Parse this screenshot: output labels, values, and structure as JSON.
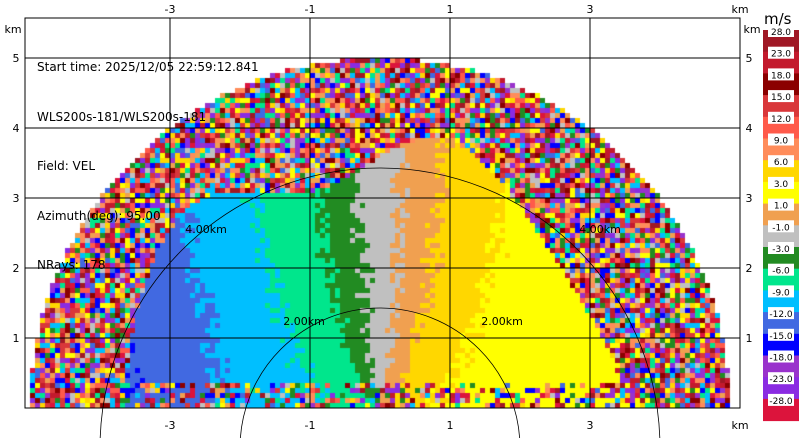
{
  "info": {
    "start_time": "Start time: 2025/12/05 22:59:12.841",
    "site": "WLS200s-181/WLS200s-181",
    "field": "Field: VEL",
    "azimuth": "Azimuth(deg): 95.00",
    "nrays": "NRays: 178"
  },
  "colorbar": {
    "unit": "m/s",
    "labels": [
      "28.0",
      "23.0",
      "18.0",
      "15.0",
      "12.0",
      "9.0",
      "6.0",
      "3.0",
      "1.0",
      "-1.0",
      "-3.0",
      "-6.0",
      "-9.0",
      "-12.0",
      "-15.0",
      "-18.0",
      "-23.0",
      "-28.0"
    ],
    "colors": [
      "#a01825",
      "#c31a2d",
      "#8b0000",
      "#d9373a",
      "#ff5a4a",
      "#ff8c5a",
      "#ffd700",
      "#ffff00",
      "#f0a050",
      "#c0c0c0",
      "#228b22",
      "#00e68c",
      "#00bfff",
      "#4169e1",
      "#0000ff",
      "#9932cc",
      "#8a2be2",
      "#dc143c"
    ]
  },
  "chart_data": {
    "type": "heatmap",
    "xlabel": "km",
    "ylabel": "km",
    "x_ticks": [
      -3,
      -1,
      1,
      3
    ],
    "y_ticks": [
      1,
      2,
      3,
      4,
      5
    ],
    "xlim": [
      -5.7,
      4.5
    ],
    "ylim": [
      0,
      5.6
    ],
    "range_rings": [
      {
        "radius_km": 2.0,
        "label": "2.00km"
      },
      {
        "radius_km": 4.0,
        "label": "4.00km"
      }
    ],
    "max_range_km": 5.0,
    "grid": true,
    "field": "VEL",
    "units": "m/s"
  }
}
